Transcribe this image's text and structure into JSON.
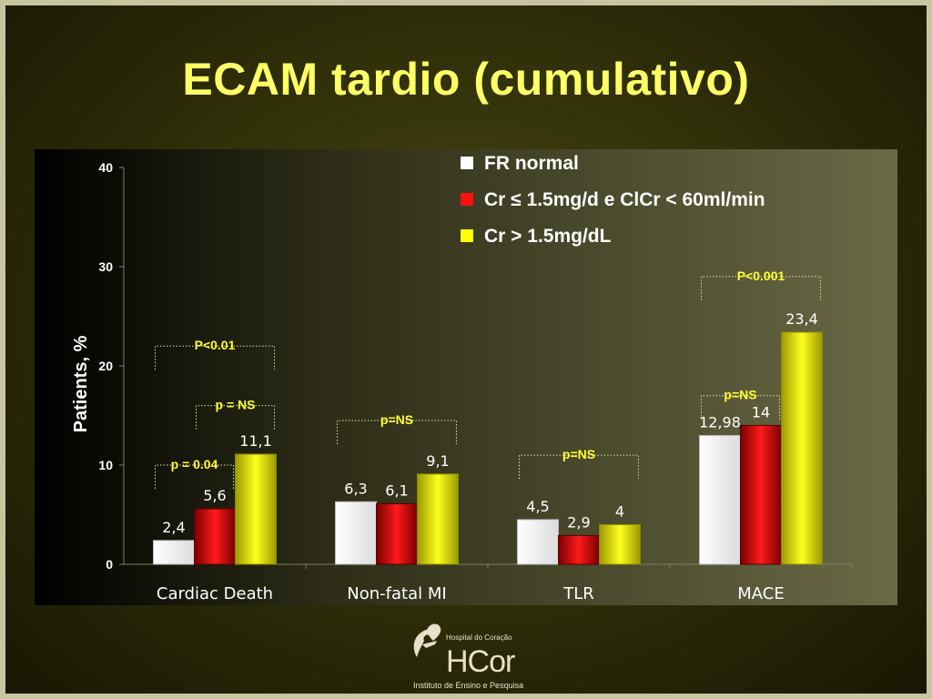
{
  "slide": {
    "title": "ECAM tardio (cumulativo)"
  },
  "logo": {
    "line1": "Hospital do Coração",
    "main": "HCor",
    "line2": "Instituto de Ensino e Pesquisa"
  },
  "colors": {
    "title": "#ffff66",
    "series": [
      "#ffffff",
      "#e00000",
      "#ffff00"
    ],
    "annotation": "#ffff33"
  },
  "chart_data": {
    "type": "bar",
    "title": "",
    "xlabel": "",
    "ylabel": "Patients, %",
    "ylim": [
      0,
      40
    ],
    "yticks": [
      0,
      10,
      20,
      30,
      40
    ],
    "grid": false,
    "legend_position": "top-right",
    "categories": [
      "Cardiac Death",
      "Non-fatal MI",
      "TLR",
      "MACE"
    ],
    "series": [
      {
        "name": "FR normal",
        "values": [
          2.4,
          6.3,
          4.5,
          12.98
        ],
        "labels": [
          "2,4",
          "6,3",
          "4,5",
          "12,98"
        ]
      },
      {
        "name": "Cr ≤ 1.5mg/d e ClCr  < 60ml/min",
        "values": [
          5.6,
          6.1,
          2.9,
          14
        ],
        "labels": [
          "5,6",
          "6,1",
          "2,9",
          "14"
        ]
      },
      {
        "name": "Cr > 1.5mg/dL",
        "values": [
          11.1,
          9.1,
          4,
          23.4
        ],
        "labels": [
          "11,1",
          "9,1",
          "4",
          "23,4"
        ]
      }
    ],
    "annotations": [
      {
        "text": "P<0.01",
        "category": 0,
        "from": 0,
        "to": 2,
        "level": 22
      },
      {
        "text": "p = NS",
        "category": 0,
        "from": 1,
        "to": 2,
        "level": 16
      },
      {
        "text": "p = 0.04",
        "category": 0,
        "from": 0,
        "to": 1,
        "level": 10
      },
      {
        "text": "p=NS",
        "category": 1,
        "from": 0,
        "to": 2,
        "level": 14.5
      },
      {
        "text": "p=NS",
        "category": 2,
        "from": 0,
        "to": 2,
        "level": 11
      },
      {
        "text": "p=NS",
        "category": 3,
        "from": 0,
        "to": 1,
        "level": 17
      },
      {
        "text": "P<0.001",
        "category": 3,
        "from": 0,
        "to": 2,
        "level": 29
      }
    ]
  }
}
